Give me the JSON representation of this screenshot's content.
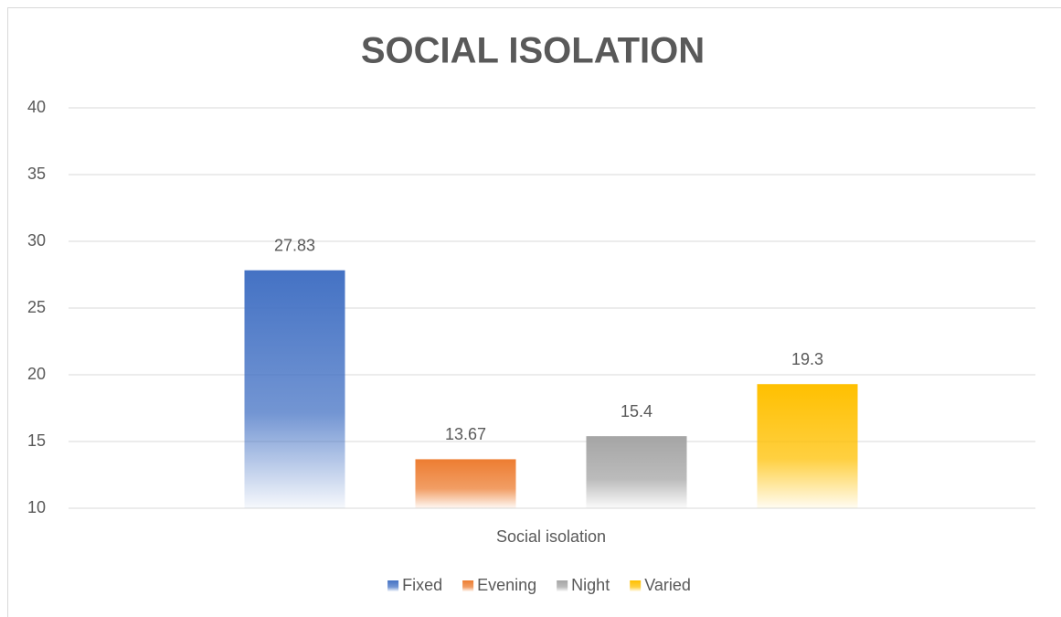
{
  "chart_data": {
    "type": "bar",
    "title": "SOCIAL ISOLATION",
    "categories": [
      "Social isolation"
    ],
    "series": [
      {
        "name": "Fixed",
        "color": "#4472c4",
        "values": [
          27.83
        ]
      },
      {
        "name": "Evening",
        "color": "#ed7d31",
        "values": [
          13.67
        ]
      },
      {
        "name": "Night",
        "color": "#a5a5a5",
        "values": [
          15.4
        ]
      },
      {
        "name": "Varied",
        "color": "#ffc000",
        "values": [
          19.3
        ]
      }
    ],
    "ylim": [
      10,
      40
    ],
    "yticks": [
      10,
      15,
      20,
      25,
      30,
      35,
      40
    ],
    "grid": true,
    "legend": "bottom"
  }
}
